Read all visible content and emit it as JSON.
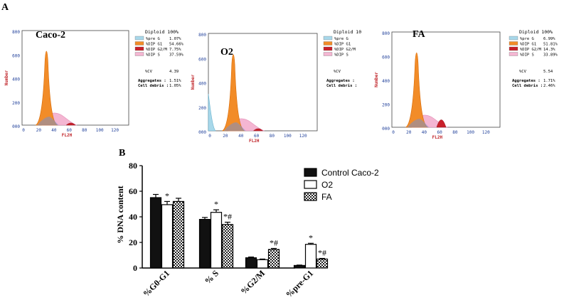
{
  "panel_labels": {
    "a": "A",
    "b": "B"
  },
  "histograms": [
    {
      "sample": "Caco-2",
      "diploid_label": "Diploid 100%",
      "legend": [
        {
          "name": "%pre G",
          "value": "1.07%",
          "color": "#a8d8ea"
        },
        {
          "name": "%DIP G1",
          "value": "54.66%",
          "color": "#f28c28"
        },
        {
          "name": "%DIP G2/M",
          "value": "7.75%",
          "color": "#c8202a"
        },
        {
          "name": "%DIP S",
          "value": "37.59%",
          "color": "#f4b6d2"
        }
      ],
      "cv_label": "%CV",
      "cv_value": "4.39",
      "aggregates_label": "Aggregates :",
      "aggregates_value": "1.51%",
      "debris_label": "Cell debris :",
      "debris_value": "1.05%",
      "y_ticks": [
        "800",
        "600",
        "400",
        "200",
        "000"
      ],
      "x_ticks": [
        "0",
        "20",
        "40",
        "60",
        "80",
        "100",
        "120"
      ],
      "y_label": "Number",
      "x_label": "FL2H"
    },
    {
      "sample": "O2",
      "diploid_label": "Diploid 10",
      "legend": [
        {
          "name": "%pre G",
          "value": "",
          "color": "#a8d8ea"
        },
        {
          "name": "%DIP G1",
          "value": "",
          "color": "#f28c28"
        },
        {
          "name": "%DIP G2/M",
          "value": "",
          "color": "#c8202a"
        },
        {
          "name": "%DIP S",
          "value": "",
          "color": "#f4b6d2"
        }
      ],
      "cv_label": "%CV",
      "cv_value": "",
      "aggregates_label": "Aggregates :",
      "aggregates_value": "",
      "debris_label": "Cell debris :",
      "debris_value": "",
      "y_ticks": [
        "800",
        "600",
        "400",
        "200",
        "000"
      ],
      "x_ticks": [
        "0",
        "20",
        "40",
        "60",
        "80",
        "100",
        "120"
      ],
      "y_label": "Number",
      "x_label": "FL2H"
    },
    {
      "sample": "FA",
      "diploid_label": "Diploid 100%",
      "legend": [
        {
          "name": "%pre G",
          "value": "6.99%",
          "color": "#a8d8ea"
        },
        {
          "name": "%DIP G1",
          "value": "51.81%",
          "color": "#f28c28"
        },
        {
          "name": "%DIP G2/M",
          "value": "14.3%",
          "color": "#c8202a"
        },
        {
          "name": "%DIP S",
          "value": "33.89%",
          "color": "#f4b6d2"
        }
      ],
      "cv_label": "%CV",
      "cv_value": "5.54",
      "aggregates_label": "Aggregates :",
      "aggregates_value": "1.71%",
      "debris_label": "Cell debris :",
      "debris_value": "2.46%",
      "y_ticks": [
        "800",
        "600",
        "400",
        "200",
        "000"
      ],
      "x_ticks": [
        "0",
        "20",
        "40",
        "60",
        "80",
        "100",
        "120"
      ],
      "y_label": "Number",
      "x_label": "FL2H"
    }
  ],
  "chart_data": {
    "type": "bar",
    "title": "",
    "xlabel": "",
    "ylabel": "% DNA content",
    "ylim": [
      0,
      80
    ],
    "yticks": [
      0,
      20,
      40,
      60,
      80
    ],
    "grid": false,
    "legend_position": "top-right",
    "categories": [
      "%G0-G1",
      "% S",
      "%G2/M",
      "%pre-G1"
    ],
    "series": [
      {
        "name": "Control Caco-2",
        "style": "solid",
        "color": "#111111",
        "values": [
          55,
          38,
          8,
          2
        ],
        "errors": [
          2.5,
          1.5,
          0.6,
          0.3
        ],
        "annotations": [
          "",
          "",
          "",
          ""
        ]
      },
      {
        "name": "O2",
        "style": "open",
        "color": "#ffffff",
        "values": [
          49.5,
          43.5,
          6.5,
          18.5
        ],
        "errors": [
          2.5,
          2,
          0.5,
          0.8
        ],
        "annotations": [
          "*",
          "*",
          "",
          "*"
        ]
      },
      {
        "name": "FA",
        "style": "checker",
        "color": "#333333",
        "values": [
          52,
          34,
          14.5,
          7
        ],
        "errors": [
          2.5,
          1.8,
          0.8,
          0.5
        ],
        "annotations": [
          "",
          "*#",
          "*#",
          "*#"
        ]
      }
    ]
  }
}
